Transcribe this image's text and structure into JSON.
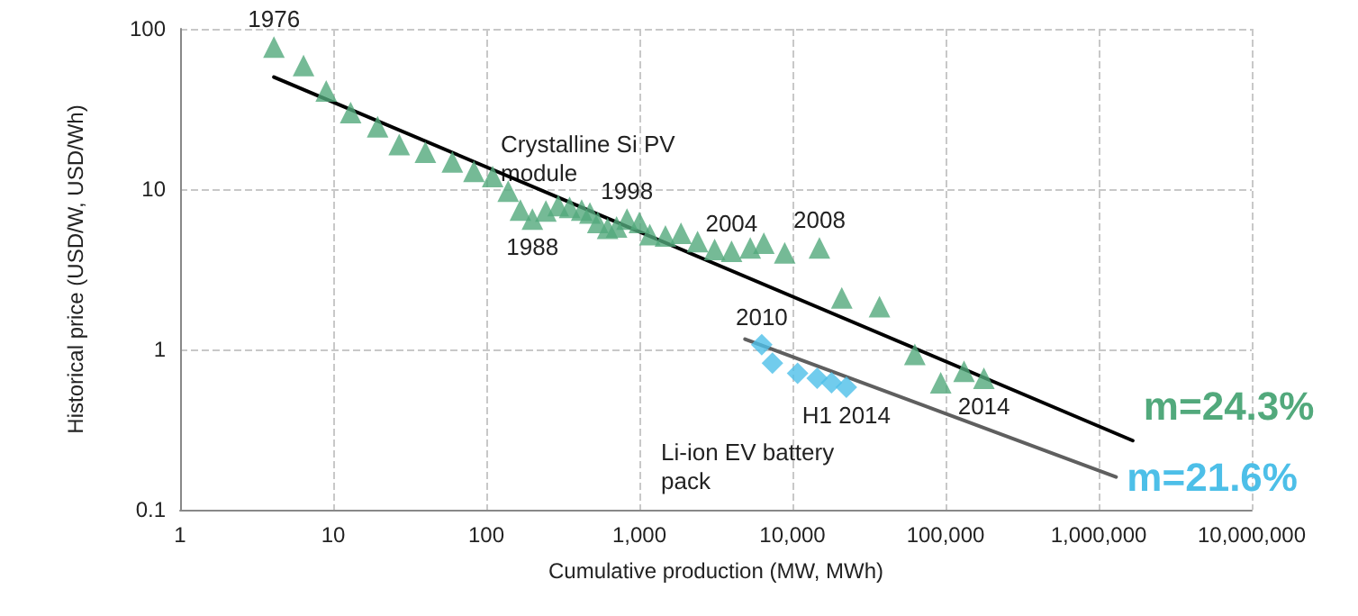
{
  "chart_data": {
    "type": "scatter",
    "xlabel": "Cumulative production (MW, MWh)",
    "ylabel": "Historical price (USD/W, USD/Wh)",
    "log": "xy",
    "grid": true,
    "xlim": [
      1,
      10000000
    ],
    "xticks": [
      1,
      10,
      100,
      {
        "value": 1000,
        "label": "1,000"
      },
      {
        "value": 10000,
        "label": "10,000"
      },
      {
        "value": 100000,
        "label": "100,000"
      },
      {
        "value": 1000000,
        "label": "1,000,000"
      },
      {
        "value": 10000000,
        "label": "10,000,000"
      }
    ],
    "ylim": [
      0.1,
      100
    ],
    "yticks": [
      0.1,
      1,
      10,
      100
    ],
    "series": [
      {
        "name": "m=24.3%",
        "color": "#52a97c",
        "marker": "triangle",
        "x": [
          4.1,
          6.4,
          9,
          13,
          19.5,
          27,
          40,
          60,
          83,
          110,
          139,
          167,
          200,
          245,
          295,
          350,
          420,
          475,
          535,
          620,
          710,
          830,
          1000,
          1170,
          1480,
          1870,
          2400,
          3100,
          4000,
          5300,
          6500,
          8900,
          15000,
          21000,
          37000,
          63000,
          93000,
          132000,
          178000
        ],
        "values": [
          77,
          59,
          41,
          30,
          24.5,
          19,
          17,
          14.8,
          12.9,
          12,
          9.7,
          7.4,
          6.5,
          7.3,
          7.9,
          7.7,
          7.4,
          7.1,
          6.2,
          5.7,
          5.8,
          6.5,
          6.2,
          5.2,
          5.1,
          5.3,
          4.7,
          4.2,
          4.1,
          4.3,
          4.6,
          4.0,
          4.3,
          2.1,
          1.85,
          0.93,
          0.62,
          0.73,
          0.66
        ]
      },
      {
        "name": "m=21.6%",
        "color": "#4dbfe8",
        "marker": "diamond",
        "x": [
          6300,
          7400,
          10800,
          14500,
          18000,
          22500
        ],
        "values": [
          1.07,
          0.82,
          0.71,
          0.66,
          0.62,
          0.58
        ]
      },
      {
        "type": "line",
        "color": "#000000",
        "marker": "none",
        "x": [
          4.1,
          1670000
        ],
        "values": [
          50,
          0.27
        ]
      },
      {
        "type": "line",
        "color": "#5f5f5f",
        "marker": "none",
        "x": [
          4900,
          1300000
        ],
        "values": [
          1.16,
          0.16
        ]
      }
    ],
    "annotations": [
      {
        "text": "1976",
        "x": 4.1,
        "y": 77
      },
      {
        "text": "1988",
        "x": 200,
        "y": 6.5
      },
      {
        "text": "1998",
        "x": 830,
        "y": 6.5
      },
      {
        "text": "2004",
        "x": 4000,
        "y": 4.1
      },
      {
        "text": "2008",
        "x": 15000,
        "y": 4.3
      },
      {
        "text": "2010",
        "x": 6300,
        "y": 1.07
      },
      {
        "text": "2014",
        "x": 178000,
        "y": 0.66
      },
      {
        "text": "H1 2014",
        "x": 22500,
        "y": 0.58
      },
      "Crystalline Si PV module",
      "Li-ion EV battery pack"
    ]
  }
}
